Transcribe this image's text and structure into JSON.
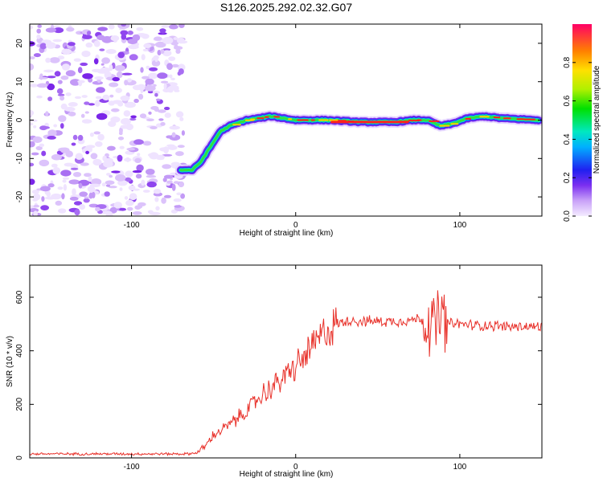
{
  "title": "S126.2025.292.02.32.G07",
  "chart_data": [
    {
      "type": "heatmap",
      "xlabel": "Height of straight line (km)",
      "ylabel": "Frequency (Hz)",
      "xlim": [
        -162,
        150
      ],
      "ylim": [
        -25,
        25
      ],
      "xticks": [
        "-100",
        "0",
        "100"
      ],
      "yticks": [
        "20",
        "10",
        "0",
        "-10",
        "-20"
      ],
      "colorbar": {
        "label": "Normalized spectral amplitude",
        "range": [
          0,
          1
        ],
        "ticks": [
          "0.0",
          "0.2",
          "0.4",
          "0.6",
          "0.8"
        ]
      },
      "signal_track": {
        "x": [
          -70,
          -63,
          -58,
          -52,
          -46,
          -40,
          -30,
          -15,
          0,
          20,
          40,
          60,
          72,
          80,
          88,
          95,
          105,
          115,
          125,
          148
        ],
        "y": [
          -13,
          -13,
          -11,
          -7,
          -3,
          -1.5,
          0,
          1,
          0,
          0,
          -0.5,
          -0.5,
          0,
          0,
          -1.5,
          -1,
          0.5,
          1,
          0.5,
          0
        ]
      },
      "noise_region_x": [
        -162,
        -68
      ]
    },
    {
      "type": "line",
      "xlabel": "Height of straight line (km)",
      "ylabel": "SNR (10 * v/v)",
      "xlim": [
        -162,
        150
      ],
      "ylim": [
        0,
        720
      ],
      "xticks": [
        "-100",
        "0",
        "100"
      ],
      "yticks": [
        "0",
        "200",
        "400",
        "600"
      ],
      "color": "#e8312a",
      "series": [
        {
          "name": "SNR",
          "x": [
            -162,
            -140,
            -120,
            -100,
            -80,
            -65,
            -60,
            -55,
            -50,
            -45,
            -40,
            -35,
            -30,
            -25,
            -20,
            -15,
            -10,
            -5,
            0,
            5,
            10,
            15,
            20,
            25,
            30,
            35,
            40,
            50,
            60,
            70,
            75,
            80,
            82,
            84,
            86,
            88,
            90,
            92,
            95,
            100,
            110,
            120,
            130,
            140,
            150
          ],
          "values": [
            15,
            15,
            15,
            15,
            15,
            15,
            20,
            45,
            85,
            105,
            125,
            150,
            175,
            205,
            240,
            260,
            285,
            315,
            340,
            375,
            410,
            450,
            480,
            500,
            510,
            515,
            510,
            510,
            510,
            515,
            520,
            510,
            540,
            470,
            500,
            530,
            510,
            505,
            500,
            500,
            495,
            495,
            490,
            490,
            490
          ]
        }
      ]
    }
  ]
}
